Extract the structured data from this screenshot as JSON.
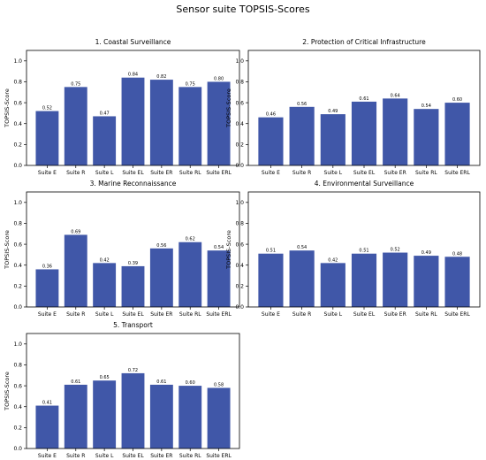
{
  "figure": {
    "title": "Sensor suite TOPSIS-Scores",
    "bar_color": "#4057a8"
  },
  "chart_data": [
    {
      "type": "bar",
      "title": "1. Coastal Surveillance",
      "ylabel": "TOPSIS-Score",
      "xlabel": "",
      "ylim": [
        0,
        1.1
      ],
      "yticks": [
        "0.0",
        "0.2",
        "0.4",
        "0.6",
        "0.8",
        "1.0"
      ],
      "grid": false,
      "categories": [
        "Suite E",
        "Suite R",
        "Suite L",
        "Suite EL",
        "Suite ER",
        "Suite RL",
        "Suite ERL"
      ],
      "values": [
        0.52,
        0.75,
        0.47,
        0.84,
        0.82,
        0.75,
        0.8
      ],
      "value_labels": [
        "0.52",
        "0.75",
        "0.47",
        "0.84",
        "0.82",
        "0.75",
        "0.80"
      ]
    },
    {
      "type": "bar",
      "title": "2. Protection of Critical Infrastructure",
      "ylabel": "TOPSIS-Score",
      "xlabel": "",
      "ylim": [
        0,
        1.1
      ],
      "yticks": [
        "0.0",
        "0.2",
        "0.4",
        "0.6",
        "0.8",
        "1.0"
      ],
      "grid": false,
      "categories": [
        "Suite E",
        "Suite R",
        "Suite L",
        "Suite EL",
        "Suite ER",
        "Suite RL",
        "Suite ERL"
      ],
      "values": [
        0.46,
        0.56,
        0.49,
        0.61,
        0.64,
        0.54,
        0.6
      ],
      "value_labels": [
        "0.46",
        "0.56",
        "0.49",
        "0.61",
        "0.64",
        "0.54",
        "0.60"
      ]
    },
    {
      "type": "bar",
      "title": "3. Marine Reconnaissance",
      "ylabel": "TOPSIS-Score",
      "xlabel": "",
      "ylim": [
        0,
        1.1
      ],
      "yticks": [
        "0.0",
        "0.2",
        "0.4",
        "0.6",
        "0.8",
        "1.0"
      ],
      "grid": false,
      "categories": [
        "Suite E",
        "Suite R",
        "Suite L",
        "Suite EL",
        "Suite ER",
        "Suite RL",
        "Suite ERL"
      ],
      "values": [
        0.36,
        0.69,
        0.42,
        0.39,
        0.56,
        0.62,
        0.54
      ],
      "value_labels": [
        "0.36",
        "0.69",
        "0.42",
        "0.39",
        "0.56",
        "0.62",
        "0.54"
      ]
    },
    {
      "type": "bar",
      "title": "4. Environmental Surveillance",
      "ylabel": "TOPSIS-Score",
      "xlabel": "",
      "ylim": [
        0,
        1.1
      ],
      "yticks": [
        "0.0",
        "0.2",
        "0.4",
        "0.6",
        "0.8",
        "1.0"
      ],
      "grid": false,
      "categories": [
        "Suite E",
        "Suite R",
        "Suite L",
        "Suite EL",
        "Suite ER",
        "Suite RL",
        "Suite ERL"
      ],
      "values": [
        0.51,
        0.54,
        0.42,
        0.51,
        0.52,
        0.49,
        0.48
      ],
      "value_labels": [
        "0.51",
        "0.54",
        "0.42",
        "0.51",
        "0.52",
        "0.49",
        "0.48"
      ]
    },
    {
      "type": "bar",
      "title": "5. Transport",
      "ylabel": "TOPSIS-Score",
      "xlabel": "",
      "ylim": [
        0,
        1.1
      ],
      "yticks": [
        "0.0",
        "0.2",
        "0.4",
        "0.6",
        "0.8",
        "1.0"
      ],
      "grid": false,
      "categories": [
        "Suite E",
        "Suite R",
        "Suite L",
        "Suite EL",
        "Suite ER",
        "Suite RL",
        "Suite ERL"
      ],
      "values": [
        0.41,
        0.61,
        0.65,
        0.72,
        0.61,
        0.6,
        0.58
      ],
      "value_labels": [
        "0.41",
        "0.61",
        "0.65",
        "0.72",
        "0.61",
        "0.60",
        "0.58"
      ]
    }
  ]
}
